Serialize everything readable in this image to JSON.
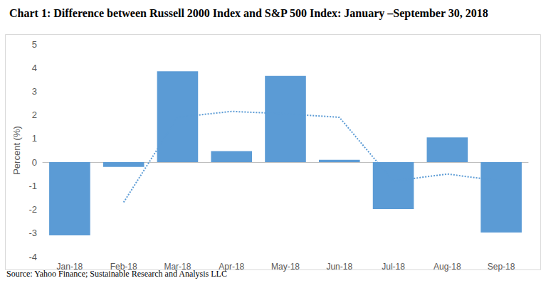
{
  "chart_data": {
    "type": "bar",
    "title": "Chart 1: Difference between Russell 2000 Index and S&P 500 Index: January –September 30, 2018",
    "source": "Source: Yahoo Finance; Sustainable Research and Analysis LLC",
    "y_label": "Percent (%)",
    "categories": [
      "Jan-18",
      "Feb-18",
      "Mar-18",
      "Apr-18",
      "May-18",
      "Jun-18",
      "Jul-18",
      "Aug-18",
      "Sep-18"
    ],
    "series": [
      {
        "type": "bar",
        "color": "#5b9bd5",
        "values": [
          -3.1,
          -0.2,
          3.85,
          0.47,
          3.65,
          0.1,
          -1.98,
          1.05,
          -2.98
        ]
      },
      {
        "type": "line",
        "color": "#5b9bd5",
        "line_style": "dotted",
        "marker": "none",
        "values": [
          null,
          -1.7,
          1.9,
          2.15,
          2.05,
          1.9,
          -0.8,
          -0.5,
          -0.8
        ]
      }
    ],
    "ylim": [
      -4,
      5
    ],
    "yticks": [
      -4,
      -3,
      -2,
      -1,
      0,
      1,
      2,
      3,
      4,
      5
    ],
    "grid": false
  }
}
